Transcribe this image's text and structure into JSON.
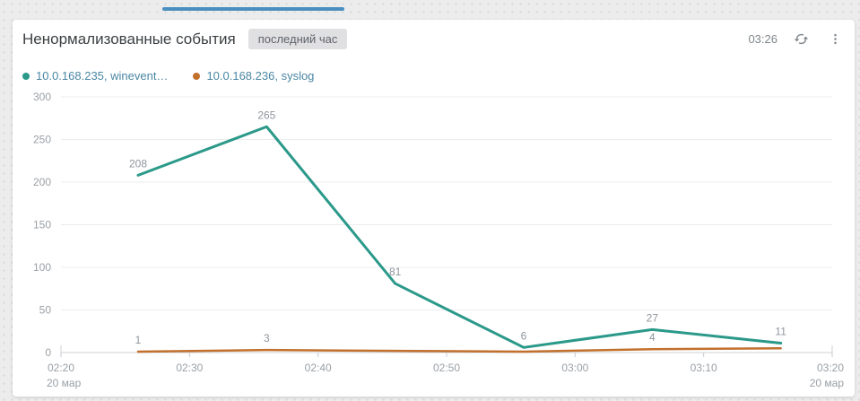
{
  "tab_indicator": {
    "color": "#4a8fc0"
  },
  "header": {
    "title": "Ненормализованные события",
    "badge": "последний час",
    "time": "03:26",
    "icons": [
      "refresh-icon",
      "kebab-menu-icon"
    ]
  },
  "legend": [
    {
      "label": "10.0.168.235, winevent…",
      "color": "#2b998a"
    },
    {
      "label": "10.0.168.236, syslog",
      "color": "#c2702d"
    }
  ],
  "chart_data": {
    "type": "line",
    "title": "Ненормализованные события",
    "x": [
      "02:26",
      "02:36",
      "02:46",
      "02:56",
      "03:06",
      "03:16"
    ],
    "series": [
      {
        "name": "10.0.168.235, winevent…",
        "color": "#2b998a",
        "values": [
          208,
          265,
          81,
          6,
          27,
          11
        ],
        "point_labels": [
          "208",
          "265",
          "81",
          "6",
          "27",
          "11"
        ]
      },
      {
        "name": "10.0.168.236, syslog",
        "color": "#c2702d",
        "values": [
          1,
          3,
          2,
          1,
          4,
          5
        ],
        "point_labels": [
          "1",
          "3",
          "",
          "",
          "4",
          ""
        ]
      }
    ],
    "x_ticks": [
      "02:20",
      "02:30",
      "02:40",
      "02:50",
      "03:00",
      "03:10",
      "03:20"
    ],
    "date_label": "20 мар",
    "y_ticks": [
      0,
      50,
      100,
      150,
      200,
      250,
      300
    ],
    "ylim": [
      0,
      300
    ],
    "xlabel": "",
    "ylabel": "",
    "grid": "horizontal",
    "legend_position": "top-left"
  },
  "colors": {
    "axis_line": "#cdd1d5",
    "grid_line": "#eaecef",
    "tick_mark": "#c6cacf",
    "axis_label": "#9aa0a6",
    "data_label": "#8f959b"
  }
}
